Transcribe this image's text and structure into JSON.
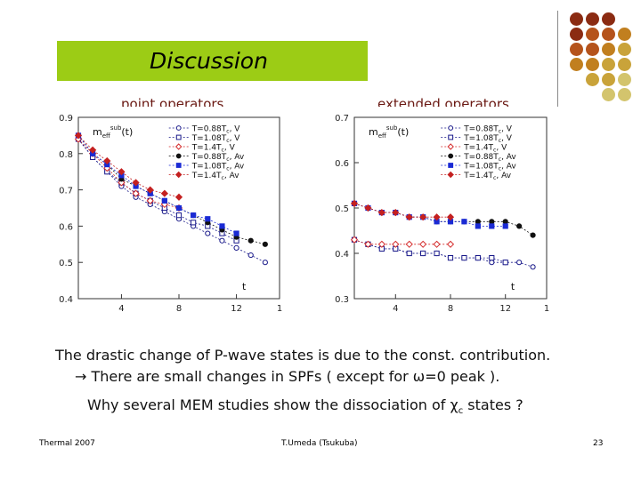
{
  "slide": {
    "title": "Discussion",
    "left_panel_label": "point operators",
    "right_panel_label": "extended operators",
    "line1": "The drastic change of P-wave states is due to the const. contribution.",
    "line2": "→ There are small changes in SPFs ( except for ω=0 peak ).",
    "line3_main": "Why several MEM studies show the dissociation of χ",
    "line3_sub": "c",
    "line3_end": " states ?",
    "footer_left": "Thermal 2007",
    "footer_center": "T.Umeda (Tsukuba)",
    "footer_right": "23"
  },
  "decor": {
    "dot_colors": [
      "#8b2b12",
      "#b5531b",
      "#c17f1f",
      "#c9a33a",
      "#d3c46d"
    ]
  },
  "chart_data": [
    {
      "type": "scatter",
      "title": "",
      "plot_label": "m_eff^sub(t)",
      "plot_label_main": "m",
      "plot_label_sub": "eff",
      "plot_label_sup": "sub",
      "plot_label_arg": "(t)",
      "xlabel": "t",
      "xlim": [
        1,
        15
      ],
      "ylim": [
        0.4,
        0.9
      ],
      "xticks": [
        4,
        8,
        12
      ],
      "xtick_labels": [
        "4",
        "8",
        "12"
      ],
      "edge_tick_label": "1",
      "yticks": [
        0.4,
        0.5,
        0.6,
        0.7,
        0.8,
        0.9
      ],
      "ytick_labels": [
        "0.4",
        "0.5",
        "0.6",
        "0.7",
        "0.8",
        "0.9"
      ],
      "legend_position": "top-right",
      "series": [
        {
          "name": "T=0.88T c, V",
          "name_main": "T=0.88T",
          "name_sub": "c",
          "name_end": ", V",
          "color": "#1a1a8a",
          "marker": "circle",
          "filled": false,
          "x": [
            1,
            2,
            3,
            4,
            5,
            6,
            7,
            8,
            9,
            10,
            11,
            12,
            13,
            14
          ],
          "y": [
            0.84,
            0.79,
            0.75,
            0.71,
            0.68,
            0.66,
            0.64,
            0.62,
            0.6,
            0.58,
            0.56,
            0.54,
            0.52,
            0.5
          ]
        },
        {
          "name": "T=1.08T c, V",
          "name_main": "T=1.08T",
          "name_sub": "c",
          "name_end": ", V",
          "color": "#1a1a8a",
          "marker": "square",
          "filled": false,
          "x": [
            1,
            2,
            3,
            4,
            5,
            6,
            7,
            8,
            9,
            10,
            11,
            12
          ],
          "y": [
            0.84,
            0.79,
            0.75,
            0.72,
            0.69,
            0.67,
            0.65,
            0.63,
            0.61,
            0.6,
            0.58,
            0.56
          ]
        },
        {
          "name": "T=1.4T c, V",
          "name_main": "T=1.4T",
          "name_sub": "c",
          "name_end": ", V",
          "color": "#d42a2a",
          "marker": "diamond",
          "filled": false,
          "x": [
            1,
            2,
            3,
            4,
            5,
            6,
            7,
            8
          ],
          "y": [
            0.84,
            0.8,
            0.76,
            0.72,
            0.69,
            0.67,
            0.66,
            0.65
          ]
        },
        {
          "name": "T=0.88T c, Av",
          "name_main": "T=0.88T",
          "name_sub": "c",
          "name_end": ", Av",
          "color": "#111111",
          "marker": "circle",
          "filled": true,
          "x": [
            1,
            2,
            3,
            4,
            5,
            6,
            7,
            8,
            9,
            10,
            11,
            12,
            13,
            14
          ],
          "y": [
            0.85,
            0.8,
            0.77,
            0.73,
            0.71,
            0.69,
            0.67,
            0.65,
            0.63,
            0.61,
            0.59,
            0.57,
            0.56,
            0.55
          ]
        },
        {
          "name": "T=1.08T c, Av",
          "name_main": "T=1.08T",
          "name_sub": "c",
          "name_end": ", Av",
          "color": "#1a2ad4",
          "marker": "square",
          "filled": true,
          "x": [
            1,
            2,
            3,
            4,
            5,
            6,
            7,
            8,
            9,
            10,
            11,
            12
          ],
          "y": [
            0.85,
            0.8,
            0.77,
            0.74,
            0.71,
            0.69,
            0.67,
            0.65,
            0.63,
            0.62,
            0.6,
            0.58
          ]
        },
        {
          "name": "T=1.4T c, Av",
          "name_main": "T=1.4T",
          "name_sub": "c",
          "name_end": ", Av",
          "color": "#c42020",
          "marker": "diamond",
          "filled": true,
          "x": [
            1,
            2,
            3,
            4,
            5,
            6,
            7,
            8
          ],
          "y": [
            0.85,
            0.81,
            0.78,
            0.75,
            0.72,
            0.7,
            0.69,
            0.68
          ]
        }
      ]
    },
    {
      "type": "scatter",
      "title": "",
      "plot_label": "m_eff^sub(t)",
      "plot_label_main": "m",
      "plot_label_sub": "eff",
      "plot_label_sup": "sub",
      "plot_label_arg": "(t)",
      "xlabel": "t",
      "xlim": [
        1,
        15
      ],
      "ylim": [
        0.3,
        0.7
      ],
      "xticks": [
        4,
        8,
        12
      ],
      "xtick_labels": [
        "4",
        "8",
        "12"
      ],
      "edge_tick_label": "1",
      "yticks": [
        0.3,
        0.4,
        0.5,
        0.6,
        0.7
      ],
      "ytick_labels": [
        "0.3",
        "0.4",
        "0.5",
        "0.6",
        "0.7"
      ],
      "legend_position": "top-right",
      "series": [
        {
          "name": "T=0.88T c, V",
          "name_main": "T=0.88T",
          "name_sub": "c",
          "name_end": ", V",
          "color": "#1a1a8a",
          "marker": "circle",
          "filled": false,
          "x": [
            1,
            2,
            3,
            4,
            5,
            6,
            7,
            8,
            9,
            10,
            11,
            12,
            13,
            14
          ],
          "y": [
            0.43,
            0.42,
            0.41,
            0.41,
            0.4,
            0.4,
            0.4,
            0.39,
            0.39,
            0.39,
            0.38,
            0.38,
            0.38,
            0.37
          ]
        },
        {
          "name": "T=1.08T c, V",
          "name_main": "T=1.08T",
          "name_sub": "c",
          "name_end": ", V",
          "color": "#1a1a8a",
          "marker": "square",
          "filled": false,
          "x": [
            1,
            2,
            3,
            4,
            5,
            6,
            7,
            8,
            9,
            10,
            11,
            12
          ],
          "y": [
            0.43,
            0.42,
            0.41,
            0.41,
            0.4,
            0.4,
            0.4,
            0.39,
            0.39,
            0.39,
            0.39,
            0.38
          ]
        },
        {
          "name": "T=1.4T c, V",
          "name_main": "T=1.4T",
          "name_sub": "c",
          "name_end": ", V",
          "color": "#d42a2a",
          "marker": "diamond",
          "filled": false,
          "x": [
            1,
            2,
            3,
            4,
            5,
            6,
            7,
            8
          ],
          "y": [
            0.43,
            0.42,
            0.42,
            0.42,
            0.42,
            0.42,
            0.42,
            0.42
          ]
        },
        {
          "name": "T=0.88T c, Av",
          "name_main": "T=0.88T",
          "name_sub": "c",
          "name_end": ", Av",
          "color": "#111111",
          "marker": "circle",
          "filled": true,
          "x": [
            1,
            2,
            3,
            4,
            5,
            6,
            7,
            8,
            9,
            10,
            11,
            12,
            13,
            14
          ],
          "y": [
            0.51,
            0.5,
            0.49,
            0.49,
            0.48,
            0.48,
            0.47,
            0.47,
            0.47,
            0.47,
            0.47,
            0.47,
            0.46,
            0.44
          ]
        },
        {
          "name": "T=1.08T c, Av",
          "name_main": "T=1.08T",
          "name_sub": "c",
          "name_end": ", Av",
          "color": "#1a2ad4",
          "marker": "square",
          "filled": true,
          "x": [
            1,
            2,
            3,
            4,
            5,
            6,
            7,
            8,
            9,
            10,
            11,
            12
          ],
          "y": [
            0.51,
            0.5,
            0.49,
            0.49,
            0.48,
            0.48,
            0.47,
            0.47,
            0.47,
            0.46,
            0.46,
            0.46
          ]
        },
        {
          "name": "T=1.4T c, Av",
          "name_main": "T=1.4T",
          "name_sub": "c",
          "name_end": ", Av",
          "color": "#c42020",
          "marker": "diamond",
          "filled": true,
          "x": [
            1,
            2,
            3,
            4,
            5,
            6,
            7,
            8
          ],
          "y": [
            0.51,
            0.5,
            0.49,
            0.49,
            0.48,
            0.48,
            0.48,
            0.48
          ]
        }
      ]
    }
  ]
}
